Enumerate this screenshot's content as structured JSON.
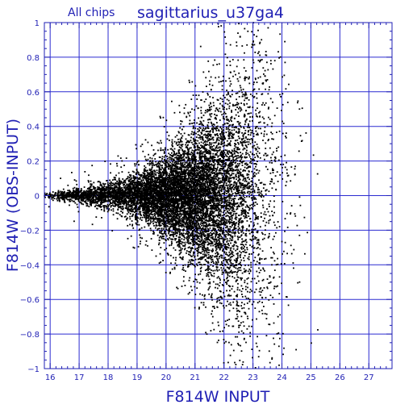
{
  "header": {
    "subset_label": "All chips",
    "dataset_label": "sagittarius_u37ga4"
  },
  "colors": {
    "axis": "#1f1fb4",
    "grid": "#2a2ad0",
    "points": "#000000",
    "background": "#ffffff"
  },
  "chart_data": {
    "type": "scatter",
    "title": "sagittarius_u37ga4",
    "subtitle": "All chips",
    "xlabel": "F814W INPUT",
    "ylabel": "F814W (OBS-INPUT)",
    "xlim": [
      15.8,
      27.8
    ],
    "ylim": [
      -1,
      1
    ],
    "grid": true,
    "x_ticks": [
      16,
      17,
      18,
      19,
      20,
      21,
      22,
      23,
      24,
      25,
      26,
      27
    ],
    "x_tick_labels": [
      "16",
      "17",
      "18",
      "19",
      "20",
      "21",
      "22",
      "23",
      "24",
      "25",
      "26",
      "27"
    ],
    "y_ticks": [
      -1,
      -0.8,
      -0.6,
      -0.4,
      -0.2,
      0,
      0.2,
      0.4,
      0.6,
      0.8,
      1
    ],
    "y_tick_labels": [
      "−1",
      "−0.8",
      "−0.6",
      "−0.4",
      "−0.2",
      "0",
      "0.2",
      "0.4",
      "0.6",
      "0.8",
      "1"
    ],
    "point_density": [
      {
        "x": 16.0,
        "weight": 40,
        "spread": 0.01
      },
      {
        "x": 16.5,
        "weight": 140,
        "spread": 0.015
      },
      {
        "x": 17.0,
        "weight": 200,
        "spread": 0.02
      },
      {
        "x": 17.5,
        "weight": 260,
        "spread": 0.03
      },
      {
        "x": 18.0,
        "weight": 320,
        "spread": 0.04
      },
      {
        "x": 18.5,
        "weight": 420,
        "spread": 0.05
      },
      {
        "x": 19.0,
        "weight": 560,
        "spread": 0.07
      },
      {
        "x": 19.5,
        "weight": 780,
        "spread": 0.09
      },
      {
        "x": 20.0,
        "weight": 1000,
        "spread": 0.12
      },
      {
        "x": 20.5,
        "weight": 1150,
        "spread": 0.15
      },
      {
        "x": 21.0,
        "weight": 1250,
        "spread": 0.19
      },
      {
        "x": 21.5,
        "weight": 1150,
        "spread": 0.24
      },
      {
        "x": 22.0,
        "weight": 950,
        "spread": 0.3
      },
      {
        "x": 22.5,
        "weight": 700,
        "spread": 0.36
      },
      {
        "x": 23.0,
        "weight": 400,
        "spread": 0.42
      },
      {
        "x": 23.5,
        "weight": 200,
        "spread": 0.5
      },
      {
        "x": 24.0,
        "weight": 90,
        "spread": 0.55
      },
      {
        "x": 24.5,
        "weight": 30,
        "spread": 0.6
      },
      {
        "x": 25.0,
        "weight": 8,
        "spread": 0.6
      }
    ]
  }
}
